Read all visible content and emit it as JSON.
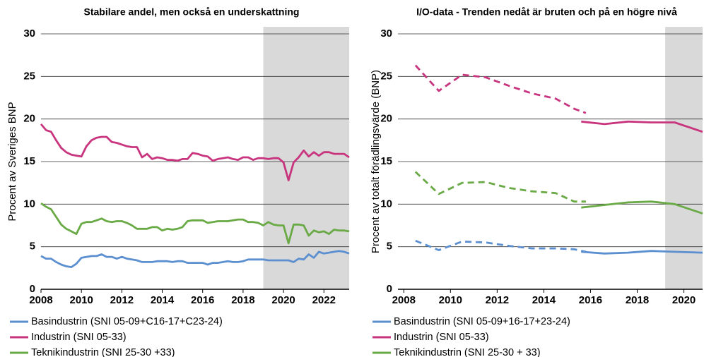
{
  "chart_data": [
    {
      "type": "line",
      "title": "Stabilare andel, men också en underskattning",
      "y_label": "Procent av Sveriges BNP",
      "xlim": [
        2008,
        2023.25
      ],
      "ylim": [
        0,
        30
      ],
      "xticks": [
        2008,
        2010,
        2012,
        2014,
        2016,
        2018,
        2020,
        2022
      ],
      "yticks": [
        0,
        5,
        10,
        15,
        20,
        25,
        30
      ],
      "grid": true,
      "shaded_region": [
        2019,
        2023.25
      ],
      "shade_color": "#d9d9d9",
      "x": [
        2008,
        2008.25,
        2008.5,
        2008.75,
        2009,
        2009.25,
        2009.5,
        2009.75,
        2010,
        2010.25,
        2010.5,
        2010.75,
        2011,
        2011.25,
        2011.5,
        2011.75,
        2012,
        2012.25,
        2012.5,
        2012.75,
        2013,
        2013.25,
        2013.5,
        2013.75,
        2014,
        2014.25,
        2014.5,
        2014.75,
        2015,
        2015.25,
        2015.5,
        2015.75,
        2016,
        2016.25,
        2016.5,
        2016.75,
        2017,
        2017.25,
        2017.5,
        2017.75,
        2018,
        2018.25,
        2018.5,
        2018.75,
        2019,
        2019.25,
        2019.5,
        2019.75,
        2020,
        2020.25,
        2020.5,
        2020.75,
        2021,
        2021.25,
        2021.5,
        2021.75,
        2022,
        2022.25,
        2022.5,
        2022.75,
        2023,
        2023.25
      ],
      "series": [
        {
          "name": "Basindustrin (SNI 05-09+C16-17+C23-24)",
          "color": "#5b8fd0",
          "values": [
            3.9,
            3.6,
            3.6,
            3.2,
            2.9,
            2.7,
            2.6,
            3.0,
            3.7,
            3.8,
            3.9,
            3.9,
            4.1,
            3.8,
            3.8,
            3.6,
            3.8,
            3.6,
            3.5,
            3.4,
            3.2,
            3.2,
            3.2,
            3.3,
            3.3,
            3.3,
            3.2,
            3.3,
            3.3,
            3.1,
            3.1,
            3.1,
            3.1,
            2.9,
            3.1,
            3.1,
            3.2,
            3.3,
            3.2,
            3.2,
            3.3,
            3.5,
            3.5,
            3.5,
            3.5,
            3.4,
            3.4,
            3.4,
            3.4,
            3.4,
            3.2,
            3.6,
            3.5,
            4.1,
            3.7,
            4.4,
            4.2,
            4.3,
            4.4,
            4.5,
            4.4,
            4.2
          ]
        },
        {
          "name": "Industrin (SNI 05-33)",
          "color": "#c8357e",
          "values": [
            19.4,
            18.7,
            18.5,
            17.5,
            16.6,
            16.1,
            15.8,
            15.7,
            15.6,
            16.8,
            17.5,
            17.8,
            17.9,
            17.9,
            17.3,
            17.2,
            17.0,
            16.8,
            16.7,
            16.7,
            15.5,
            15.9,
            15.3,
            15.5,
            15.4,
            15.2,
            15.2,
            15.1,
            15.3,
            15.3,
            16.0,
            15.9,
            15.7,
            15.6,
            15.1,
            15.3,
            15.4,
            15.5,
            15.3,
            15.2,
            15.5,
            15.5,
            15.2,
            15.4,
            15.4,
            15.3,
            15.4,
            15.4,
            14.9,
            12.8,
            14.9,
            15.5,
            16.3,
            15.6,
            16.1,
            15.7,
            16.1,
            16.1,
            15.9,
            15.9,
            15.9,
            15.5
          ]
        },
        {
          "name": "Teknikindustrin (SNI 25-30 +33)",
          "color": "#6aaa46",
          "values": [
            10.1,
            9.7,
            9.4,
            8.5,
            7.6,
            7.1,
            6.8,
            6.5,
            7.7,
            7.9,
            7.9,
            8.1,
            8.3,
            8.0,
            7.9,
            8.0,
            8.0,
            7.8,
            7.5,
            7.1,
            7.1,
            7.1,
            7.3,
            7.3,
            6.9,
            7.1,
            7.0,
            7.1,
            7.3,
            8.0,
            8.1,
            8.1,
            8.1,
            7.8,
            7.9,
            8.0,
            8.0,
            8.0,
            8.1,
            8.2,
            8.2,
            7.9,
            7.9,
            7.8,
            7.5,
            7.9,
            7.6,
            7.5,
            7.5,
            5.4,
            7.6,
            7.6,
            7.5,
            6.3,
            6.9,
            6.7,
            6.8,
            6.5,
            7.0,
            6.9,
            6.9,
            6.8
          ]
        }
      ]
    },
    {
      "type": "line",
      "title": "I/O-data - Trenden nedåt är bruten och på en högre nivå",
      "y_label": "Procent av totalt förädlingsvärde (BNP)",
      "xlim": [
        2007.75,
        2020.8
      ],
      "ylim": [
        0,
        30
      ],
      "xticks": [
        2008,
        2010,
        2012,
        2014,
        2016,
        2018,
        2020
      ],
      "yticks": [
        0,
        5,
        10,
        15,
        20,
        25,
        30
      ],
      "grid": true,
      "shaded_region": [
        2019.2,
        2020.8
      ],
      "shade_color": "#d9d9d9",
      "series": [
        {
          "name": "Basindustrin (SNI 05-09+16-17+23-24)",
          "color": "#5b8fd0",
          "x": [
            2015.6,
            2016.6,
            2017.6,
            2018.6,
            2019.6,
            2020.8
          ],
          "values": [
            4.4,
            4.2,
            4.3,
            4.5,
            4.4,
            4.3
          ],
          "dashed": {
            "x": [
              2008.5,
              2009.5,
              2010.5,
              2011.5,
              2012.5,
              2013.5,
              2014.5,
              2015.3,
              2015.8
            ],
            "values": [
              5.7,
              4.6,
              5.6,
              5.5,
              5.1,
              4.8,
              4.8,
              4.7,
              4.4
            ]
          }
        },
        {
          "name": "Industrin (SNI 05-33)",
          "color": "#c8357e",
          "x": [
            2015.6,
            2016.6,
            2017.6,
            2018.6,
            2019.6,
            2020.8
          ],
          "values": [
            19.7,
            19.4,
            19.7,
            19.6,
            19.6,
            18.5
          ],
          "dashed": {
            "x": [
              2008.5,
              2009.5,
              2010.5,
              2011.5,
              2012.5,
              2013.5,
              2014.5,
              2015.3,
              2015.8
            ],
            "values": [
              26.3,
              23.3,
              25.2,
              24.9,
              23.9,
              23.0,
              22.4,
              21.2,
              20.7
            ]
          }
        },
        {
          "name": "Teknikindustrin (SNI 25-30 + 33)",
          "color": "#6aaa46",
          "x": [
            2015.6,
            2016.6,
            2017.6,
            2018.6,
            2019.6,
            2020.8
          ],
          "values": [
            9.6,
            9.9,
            10.2,
            10.3,
            10.0,
            8.9
          ],
          "dashed": {
            "x": [
              2008.5,
              2009.5,
              2010.5,
              2011.5,
              2012.5,
              2013.5,
              2014.5,
              2015.3,
              2015.8
            ],
            "values": [
              13.8,
              11.2,
              12.5,
              12.6,
              11.9,
              11.5,
              11.3,
              10.3,
              10.3
            ]
          }
        }
      ]
    }
  ]
}
